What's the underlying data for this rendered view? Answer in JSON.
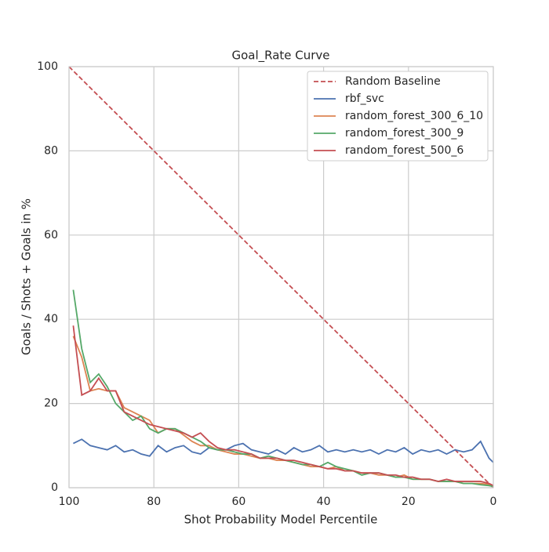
{
  "chart_data": {
    "type": "line",
    "title": "Goal_Rate Curve",
    "xlabel": "Shot Probability Model Percentile",
    "ylabel": "Goals / Shots + Goals in %",
    "xlim": [
      100,
      0
    ],
    "xticks": [
      100,
      80,
      60,
      40,
      20,
      0
    ],
    "ylim": [
      0,
      100
    ],
    "yticks": [
      0,
      20,
      40,
      60,
      80,
      100
    ],
    "grid": true,
    "legend": "upper right",
    "x": [
      99,
      97,
      95,
      93,
      91,
      89,
      87,
      85,
      83,
      81,
      79,
      77,
      75,
      73,
      71,
      69,
      67,
      65,
      63,
      61,
      59,
      57,
      55,
      53,
      51,
      49,
      47,
      45,
      43,
      41,
      39,
      37,
      35,
      33,
      31,
      29,
      27,
      25,
      23,
      21,
      19,
      17,
      15,
      13,
      11,
      9,
      7,
      5,
      3,
      1,
      0
    ],
    "series": [
      {
        "name": "Random Baseline",
        "color": "#c44e52",
        "linestyle": "dashed",
        "x": [
          100,
          0
        ],
        "values": [
          100,
          0
        ]
      },
      {
        "name": "rbf_svc",
        "color": "#4c72b0",
        "values": [
          10.5,
          11.5,
          10,
          9.5,
          9,
          10,
          8.5,
          9,
          8,
          7.5,
          10,
          8.5,
          9.5,
          10,
          8.5,
          8,
          9.5,
          9,
          9,
          10,
          10.5,
          9,
          8.5,
          8,
          9,
          8,
          9.5,
          8.5,
          9,
          10,
          8.5,
          9,
          8.5,
          9,
          8.5,
          9,
          8,
          9,
          8.5,
          9.5,
          8,
          9,
          8.5,
          9,
          8,
          9,
          8.5,
          9,
          11,
          7,
          6
        ]
      },
      {
        "name": "random_forest_300_6_10",
        "color": "#dd8452",
        "values": [
          36,
          31,
          23,
          23.5,
          23,
          23,
          19,
          18,
          17,
          16,
          13,
          14,
          14,
          12.5,
          11,
          10,
          10,
          9,
          8.5,
          8,
          8,
          7.5,
          7,
          7,
          6.5,
          6.5,
          6,
          5.5,
          5,
          5,
          4.5,
          5,
          4,
          4,
          3.5,
          3.5,
          3,
          3,
          2.5,
          3,
          2,
          2,
          2,
          1.5,
          1.5,
          1.5,
          1,
          1,
          1,
          0.8,
          0.5
        ]
      },
      {
        "name": "random_forest_300_9",
        "color": "#55a868",
        "values": [
          47,
          33,
          25,
          27,
          24,
          20,
          18,
          16,
          17,
          14,
          13,
          14,
          14,
          13,
          12,
          11,
          9.5,
          9,
          9,
          8.5,
          8,
          8,
          7,
          7.5,
          7,
          6.5,
          6,
          5.5,
          5.5,
          5,
          6,
          5,
          4.5,
          4,
          3,
          3.5,
          3.5,
          3,
          2.5,
          2.5,
          2,
          2,
          2,
          1.5,
          1.5,
          1.5,
          1,
          1,
          0.7,
          0.5,
          0.3
        ]
      },
      {
        "name": "random_forest_500_6",
        "color": "#c44e52",
        "values": [
          38.5,
          22,
          23,
          26,
          23,
          23,
          18,
          17,
          16,
          15,
          14.5,
          14,
          13.5,
          13,
          12,
          13,
          11,
          9.5,
          9,
          9,
          8.5,
          8,
          7,
          7,
          7,
          6.5,
          6.5,
          6,
          5.5,
          5,
          4.5,
          4.5,
          4,
          4,
          3.5,
          3.5,
          3.5,
          3,
          3,
          2.5,
          2.5,
          2,
          2,
          1.5,
          2,
          1.5,
          1.5,
          1.5,
          1.5,
          1,
          0.5
        ]
      }
    ]
  }
}
